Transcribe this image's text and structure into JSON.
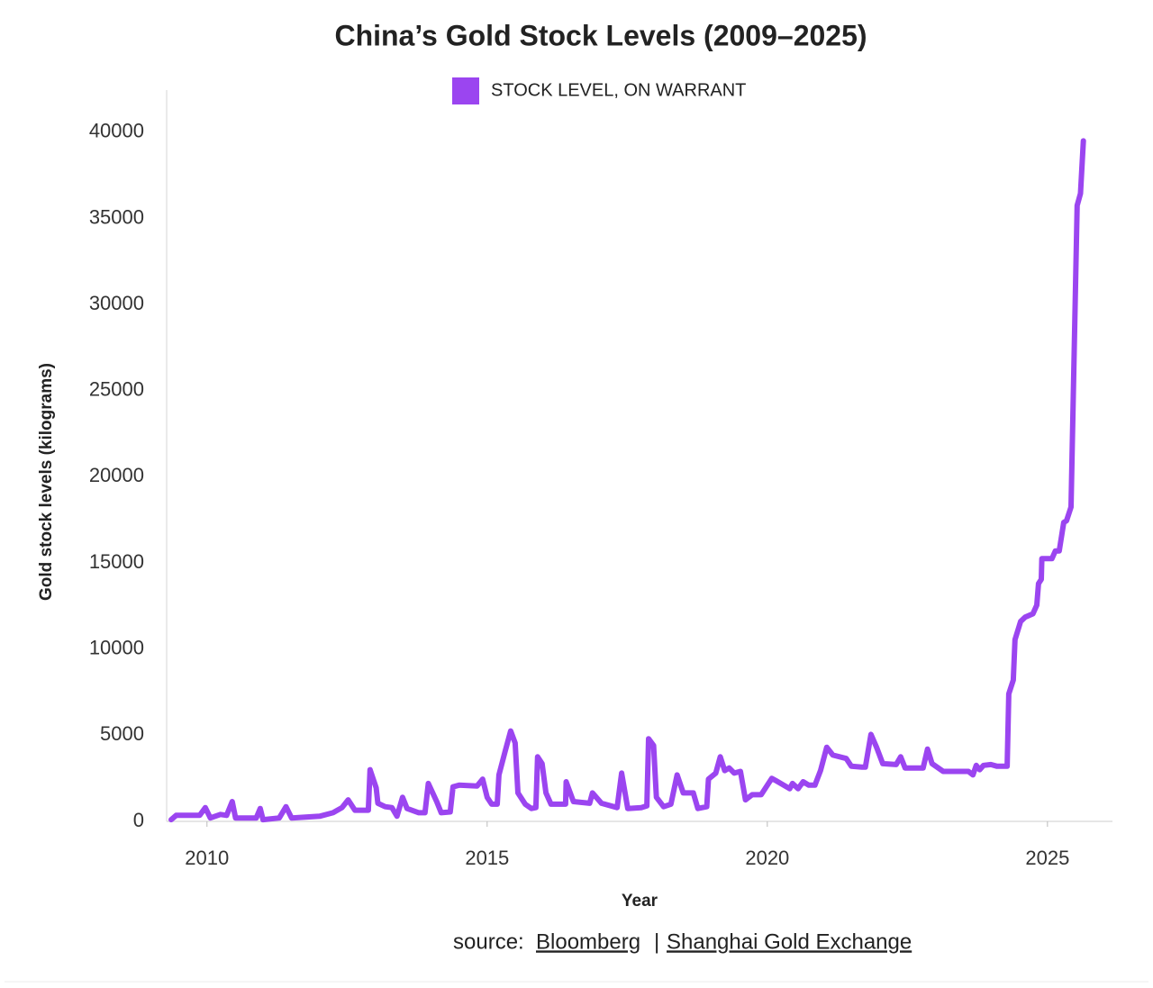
{
  "chart_data": {
    "type": "line",
    "title": "China’s Gold Stock Levels (2009–2025)",
    "x_label": "Year",
    "y_label": "Gold stock levels (kilograms)",
    "source": {
      "label": "source:",
      "items": [
        "Bloomberg",
        "Shanghai Gold Exchange"
      ],
      "separator": "|"
    },
    "legend": "top",
    "grid": false,
    "xlim": [
      2009.28,
      2026.16
    ],
    "xticks": [
      2010,
      2015,
      2020,
      2025
    ],
    "ylim": [
      0,
      42450
    ],
    "yticks": [
      0,
      5000,
      10000,
      15000,
      20000,
      25000,
      30000,
      35000,
      40000
    ],
    "x": [
      2009.36,
      2009.45,
      2009.87,
      2009.97,
      2010.06,
      2010.24,
      2010.35,
      2010.45,
      2010.51,
      2010.88,
      2010.95,
      2011.0,
      2011.29,
      2011.41,
      2011.51,
      2012.01,
      2012.25,
      2012.41,
      2012.52,
      2012.64,
      2012.88,
      2012.91,
      2013.02,
      2013.05,
      2013.18,
      2013.3,
      2013.39,
      2013.49,
      2013.57,
      2013.78,
      2013.89,
      2013.95,
      2014.1,
      2014.18,
      2014.34,
      2014.39,
      2014.5,
      2014.82,
      2014.92,
      2015.0,
      2015.08,
      2015.18,
      2015.21,
      2015.32,
      2015.42,
      2015.5,
      2015.55,
      2015.68,
      2015.79,
      2015.87,
      2015.9,
      2015.98,
      2016.05,
      2016.14,
      2016.4,
      2016.41,
      2016.54,
      2016.83,
      2016.88,
      2017.04,
      2017.32,
      2017.4,
      2017.51,
      2017.75,
      2017.85,
      2017.88,
      2017.97,
      2018.02,
      2018.15,
      2018.28,
      2018.39,
      2018.5,
      2018.68,
      2018.76,
      2018.92,
      2018.95,
      2019.08,
      2019.16,
      2019.24,
      2019.32,
      2019.41,
      2019.52,
      2019.61,
      2019.73,
      2019.89,
      2020.08,
      2020.16,
      2020.4,
      2020.45,
      2020.55,
      2020.64,
      2020.74,
      2020.85,
      2020.95,
      2021.06,
      2021.17,
      2021.41,
      2021.5,
      2021.69,
      2021.75,
      2021.85,
      2021.95,
      2022.06,
      2022.3,
      2022.38,
      2022.46,
      2022.78,
      2022.86,
      2022.94,
      2023.14,
      2023.59,
      2023.67,
      2023.73,
      2023.79,
      2023.86,
      2023.99,
      2024.1,
      2024.28,
      2024.31,
      2024.39,
      2024.42,
      2024.52,
      2024.6,
      2024.74,
      2024.81,
      2024.84,
      2024.89,
      2024.9,
      2025.08,
      2025.14,
      2025.21,
      2025.29,
      2025.34,
      2025.42,
      2025.53,
      2025.59,
      2025.64
    ],
    "series": [
      {
        "name": "STOCK LEVEL, ON WARRANT",
        "color": "#9b45f0",
        "values": [
          100,
          350,
          350,
          800,
          200,
          400,
          350,
          1150,
          200,
          200,
          750,
          100,
          200,
          850,
          200,
          300,
          500,
          800,
          1250,
          650,
          650,
          3000,
          1950,
          1050,
          850,
          800,
          300,
          1400,
          750,
          500,
          500,
          2200,
          1150,
          500,
          550,
          2000,
          2100,
          2050,
          2450,
          1400,
          1000,
          1000,
          2700,
          4050,
          5250,
          4550,
          1650,
          1000,
          750,
          800,
          3750,
          3350,
          1650,
          1000,
          1000,
          2300,
          1150,
          1050,
          1650,
          1050,
          800,
          2800,
          750,
          800,
          900,
          4800,
          4400,
          1400,
          850,
          1000,
          2700,
          1650,
          1650,
          750,
          850,
          2450,
          2800,
          3750,
          2950,
          3100,
          2800,
          2900,
          1250,
          1550,
          1550,
          2500,
          2350,
          1900,
          2200,
          1900,
          2300,
          2100,
          2100,
          2950,
          4300,
          3850,
          3650,
          3200,
          3150,
          3150,
          5050,
          4300,
          3350,
          3300,
          3750,
          3100,
          3100,
          4200,
          3350,
          2900,
          2900,
          2700,
          3250,
          3000,
          3250,
          3300,
          3200,
          3200,
          7400,
          8200,
          10550,
          11600,
          11850,
          12050,
          12550,
          13800,
          14050,
          15250,
          15250,
          15700,
          15700,
          17350,
          17450,
          18250,
          35750,
          36450,
          39500
        ]
      }
    ]
  }
}
